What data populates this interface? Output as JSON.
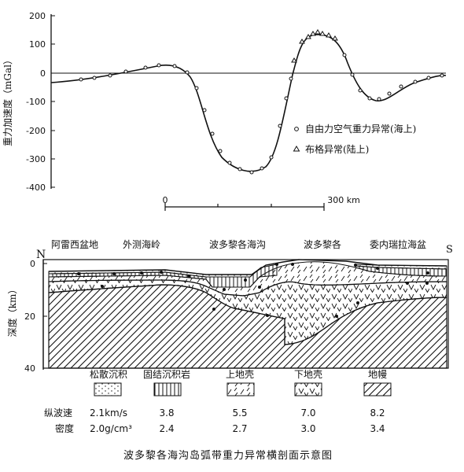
{
  "top_panel": {
    "y_axis_label": "重力加速度（mGal）",
    "y_ticks": [
      "200",
      "100",
      "0",
      "-100",
      "-200",
      "-300",
      "-400"
    ],
    "legend": [
      {
        "symbol": "○",
        "label": "自由力空气重力异常(海上)"
      },
      {
        "symbol": "△",
        "label": "布格异常(陆上)"
      }
    ],
    "scale_bar": {
      "start_label": "0",
      "end_label": "300 km"
    }
  },
  "section": {
    "north_label": "N",
    "south_label": "S",
    "regions": [
      "阿雷西盆地",
      "外测海岭",
      "波多黎各海沟",
      "波多黎各",
      "委内瑞拉海盆"
    ],
    "depth_label": "深度（km）",
    "depth_ticks": [
      "0",
      "20",
      "40"
    ]
  },
  "legend_table": {
    "materials": [
      "松散沉积",
      "固结沉积岩",
      "上地壳",
      "下地壳",
      "地幔"
    ],
    "vp_label": "纵波速",
    "density_label": "密度",
    "vp_values": [
      "2.1km/s",
      "3.8",
      "5.5",
      "7.0",
      "8.2"
    ],
    "density_values": [
      "2.0g/cm³",
      "2.4",
      "2.7",
      "3.0",
      "3.4"
    ]
  },
  "caption": "波多黎各海沟岛弧带重力异常横剖面示意图",
  "gravity_profile": {
    "x_unit": "km",
    "y_unit": "mGal",
    "ylim": [
      -400,
      200
    ],
    "points": [
      [
        -50,
        -30
      ],
      [
        0,
        -25
      ],
      [
        50,
        -10
      ],
      [
        80,
        10
      ],
      [
        110,
        20
      ],
      [
        130,
        10
      ],
      [
        150,
        -40
      ],
      [
        170,
        -140
      ],
      [
        190,
        -250
      ],
      [
        210,
        -320
      ],
      [
        230,
        -345
      ],
      [
        250,
        -320
      ],
      [
        270,
        -230
      ],
      [
        290,
        -80
      ],
      [
        305,
        60
      ],
      [
        320,
        130
      ],
      [
        335,
        150
      ],
      [
        350,
        145
      ],
      [
        365,
        110
      ],
      [
        380,
        30
      ],
      [
        395,
        -50
      ],
      [
        410,
        -90
      ],
      [
        425,
        -80
      ],
      [
        445,
        -50
      ],
      [
        470,
        -25
      ],
      [
        500,
        -10
      ],
      [
        520,
        -5
      ]
    ]
  },
  "colors": {
    "ink": "#111111",
    "paper": "#ffffff"
  }
}
